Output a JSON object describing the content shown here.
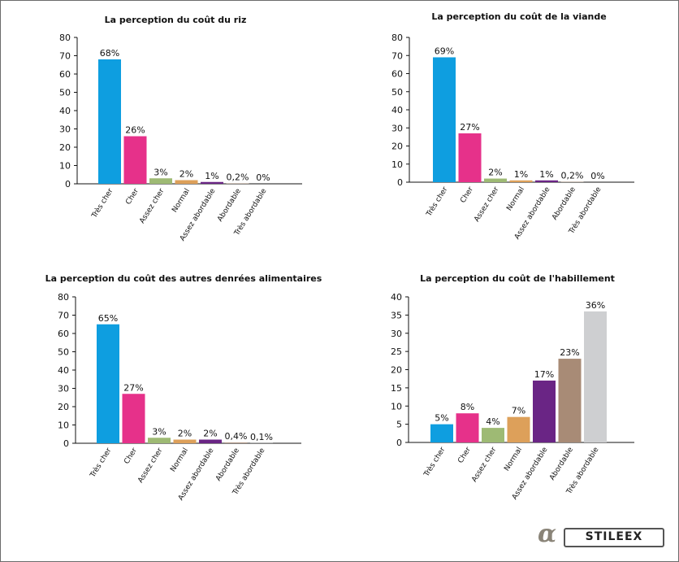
{
  "colors": {
    "tres_cher": "#0e9ee0",
    "cher": "#e6318a",
    "assez_cher": "#9eba74",
    "normal": "#dda05a",
    "assez_abordable": "#6a2585",
    "abordable": "#a88b76",
    "tres_abordable": "#cecfd1",
    "frame": "#6b6b6b"
  },
  "logo": {
    "text": "STILEEX"
  },
  "chart_data": [
    {
      "type": "bar",
      "title": "La perception du coût du riz",
      "categories": [
        "Très cher",
        "Cher",
        "Assez cher",
        "Normal",
        "Assez abordable",
        "Abordable",
        "Très abordable"
      ],
      "values": [
        68,
        26,
        3,
        2,
        1,
        0.2,
        0
      ],
      "labels": [
        "68%",
        "26%",
        "3%",
        "2%",
        "1%",
        "0,2%",
        "0%"
      ],
      "color_keys": [
        "tres_cher",
        "cher",
        "assez_cher",
        "normal",
        "assez_abordable",
        "abordable",
        "tres_abordable"
      ],
      "ylim": [
        0,
        80
      ],
      "yticks": [
        0,
        10,
        20,
        30,
        40,
        50,
        60,
        70,
        80
      ],
      "legend": "none",
      "grid": false
    },
    {
      "type": "bar",
      "title": "La perception du coût de la viande",
      "categories": [
        "Très cher",
        "Cher",
        "Assez cher",
        "Normal",
        "Assez abordable",
        "Abordable",
        "Très abordable"
      ],
      "values": [
        69,
        27,
        2,
        1,
        1,
        0.2,
        0
      ],
      "labels": [
        "69%",
        "27%",
        "2%",
        "1%",
        "1%",
        "0,2%",
        "0%"
      ],
      "color_keys": [
        "tres_cher",
        "cher",
        "assez_cher",
        "normal",
        "assez_abordable",
        "abordable",
        "tres_abordable"
      ],
      "ylim": [
        0,
        80
      ],
      "yticks": [
        0,
        10,
        20,
        30,
        40,
        50,
        60,
        70,
        80
      ],
      "legend": "none",
      "grid": false
    },
    {
      "type": "bar",
      "title": "La perception du coût des autres denrées alimentaires",
      "categories": [
        "Très cher",
        "Cher",
        "Assez cher",
        "Normal",
        "Assez abordable",
        "Abordable",
        "Très abordable"
      ],
      "values": [
        65,
        27,
        3,
        2,
        2,
        0.4,
        0.1
      ],
      "labels": [
        "65%",
        "27%",
        "3%",
        "2%",
        "2%",
        "0,4%",
        "0,1%"
      ],
      "color_keys": [
        "tres_cher",
        "cher",
        "assez_cher",
        "normal",
        "assez_abordable",
        "abordable",
        "tres_abordable"
      ],
      "ylim": [
        0,
        80
      ],
      "yticks": [
        0,
        10,
        20,
        30,
        40,
        50,
        60,
        70,
        80
      ],
      "legend": "none",
      "grid": false
    },
    {
      "type": "bar",
      "title": "La perception du coût de l'habillement",
      "categories": [
        "Très cher",
        "Cher",
        "Assez cher",
        "Normal",
        "Assez abordable",
        "Abordable",
        "Très abordable"
      ],
      "values": [
        5,
        8,
        4,
        7,
        17,
        23,
        36
      ],
      "labels": [
        "5%",
        "8%",
        "4%",
        "7%",
        "17%",
        "23%",
        "36%"
      ],
      "color_keys": [
        "tres_cher",
        "cher",
        "assez_cher",
        "normal",
        "assez_abordable",
        "abordable",
        "tres_abordable"
      ],
      "ylim": [
        0,
        40
      ],
      "yticks": [
        0,
        5,
        10,
        15,
        20,
        25,
        30,
        35,
        40
      ],
      "legend": "none",
      "grid": false
    }
  ]
}
